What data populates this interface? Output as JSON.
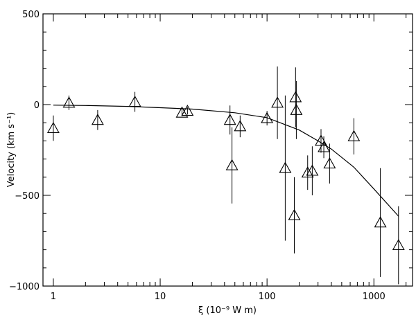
{
  "chart_data": {
    "type": "scatter",
    "title": "",
    "xlabel": "ξ (10⁻⁹ W m)",
    "ylabel": "Velocity (km s⁻¹)",
    "xscale": "log",
    "xlim": [
      0.8,
      2300
    ],
    "ylim": [
      -1000,
      500
    ],
    "xticks": [
      1,
      10,
      100,
      1000
    ],
    "xtick_labels": [
      "1",
      "10",
      "100",
      "1000"
    ],
    "yticks": [
      500,
      0,
      -500,
      -1000
    ],
    "ytick_labels": [
      "500",
      "0",
      "−500",
      "−1000"
    ],
    "grid": false,
    "legend": "none",
    "marker": "open-triangle",
    "points": [
      {
        "x": 1.0,
        "y": -130,
        "err": 70
      },
      {
        "x": 1.4,
        "y": 10,
        "err": 40
      },
      {
        "x": 2.6,
        "y": -85,
        "err": 55
      },
      {
        "x": 5.8,
        "y": 15,
        "err": 55
      },
      {
        "x": 16,
        "y": -45,
        "err": 20
      },
      {
        "x": 18,
        "y": -35,
        "err": 20
      },
      {
        "x": 45,
        "y": -85,
        "err": 80
      },
      {
        "x": 47,
        "y": -335,
        "err": 210
      },
      {
        "x": 56,
        "y": -120,
        "err": 60
      },
      {
        "x": 100,
        "y": -75,
        "err": 40
      },
      {
        "x": 125,
        "y": 10,
        "err": 200
      },
      {
        "x": 148,
        "y": -350,
        "err": 400
      },
      {
        "x": 180,
        "y": -610,
        "err": 210
      },
      {
        "x": 185,
        "y": 40,
        "err": 165
      },
      {
        "x": 188,
        "y": -30,
        "err": 160
      },
      {
        "x": 240,
        "y": -375,
        "err": 95
      },
      {
        "x": 265,
        "y": -365,
        "err": 135
      },
      {
        "x": 320,
        "y": -200,
        "err": 65
      },
      {
        "x": 340,
        "y": -235,
        "err": 60
      },
      {
        "x": 385,
        "y": -325,
        "err": 110
      },
      {
        "x": 650,
        "y": -175,
        "err": 100
      },
      {
        "x": 1150,
        "y": -650,
        "err": 300
      },
      {
        "x": 1700,
        "y": -775,
        "err": 215
      }
    ],
    "series": [
      {
        "type": "line",
        "x": [
          1,
          2,
          5,
          10,
          20,
          50,
          100,
          200,
          300,
          400,
          650,
          1000,
          1700
        ],
        "y": [
          -3,
          -5,
          -10,
          -17,
          -25,
          -45,
          -72,
          -140,
          -200,
          -245,
          -345,
          -465,
          -615
        ]
      }
    ]
  }
}
